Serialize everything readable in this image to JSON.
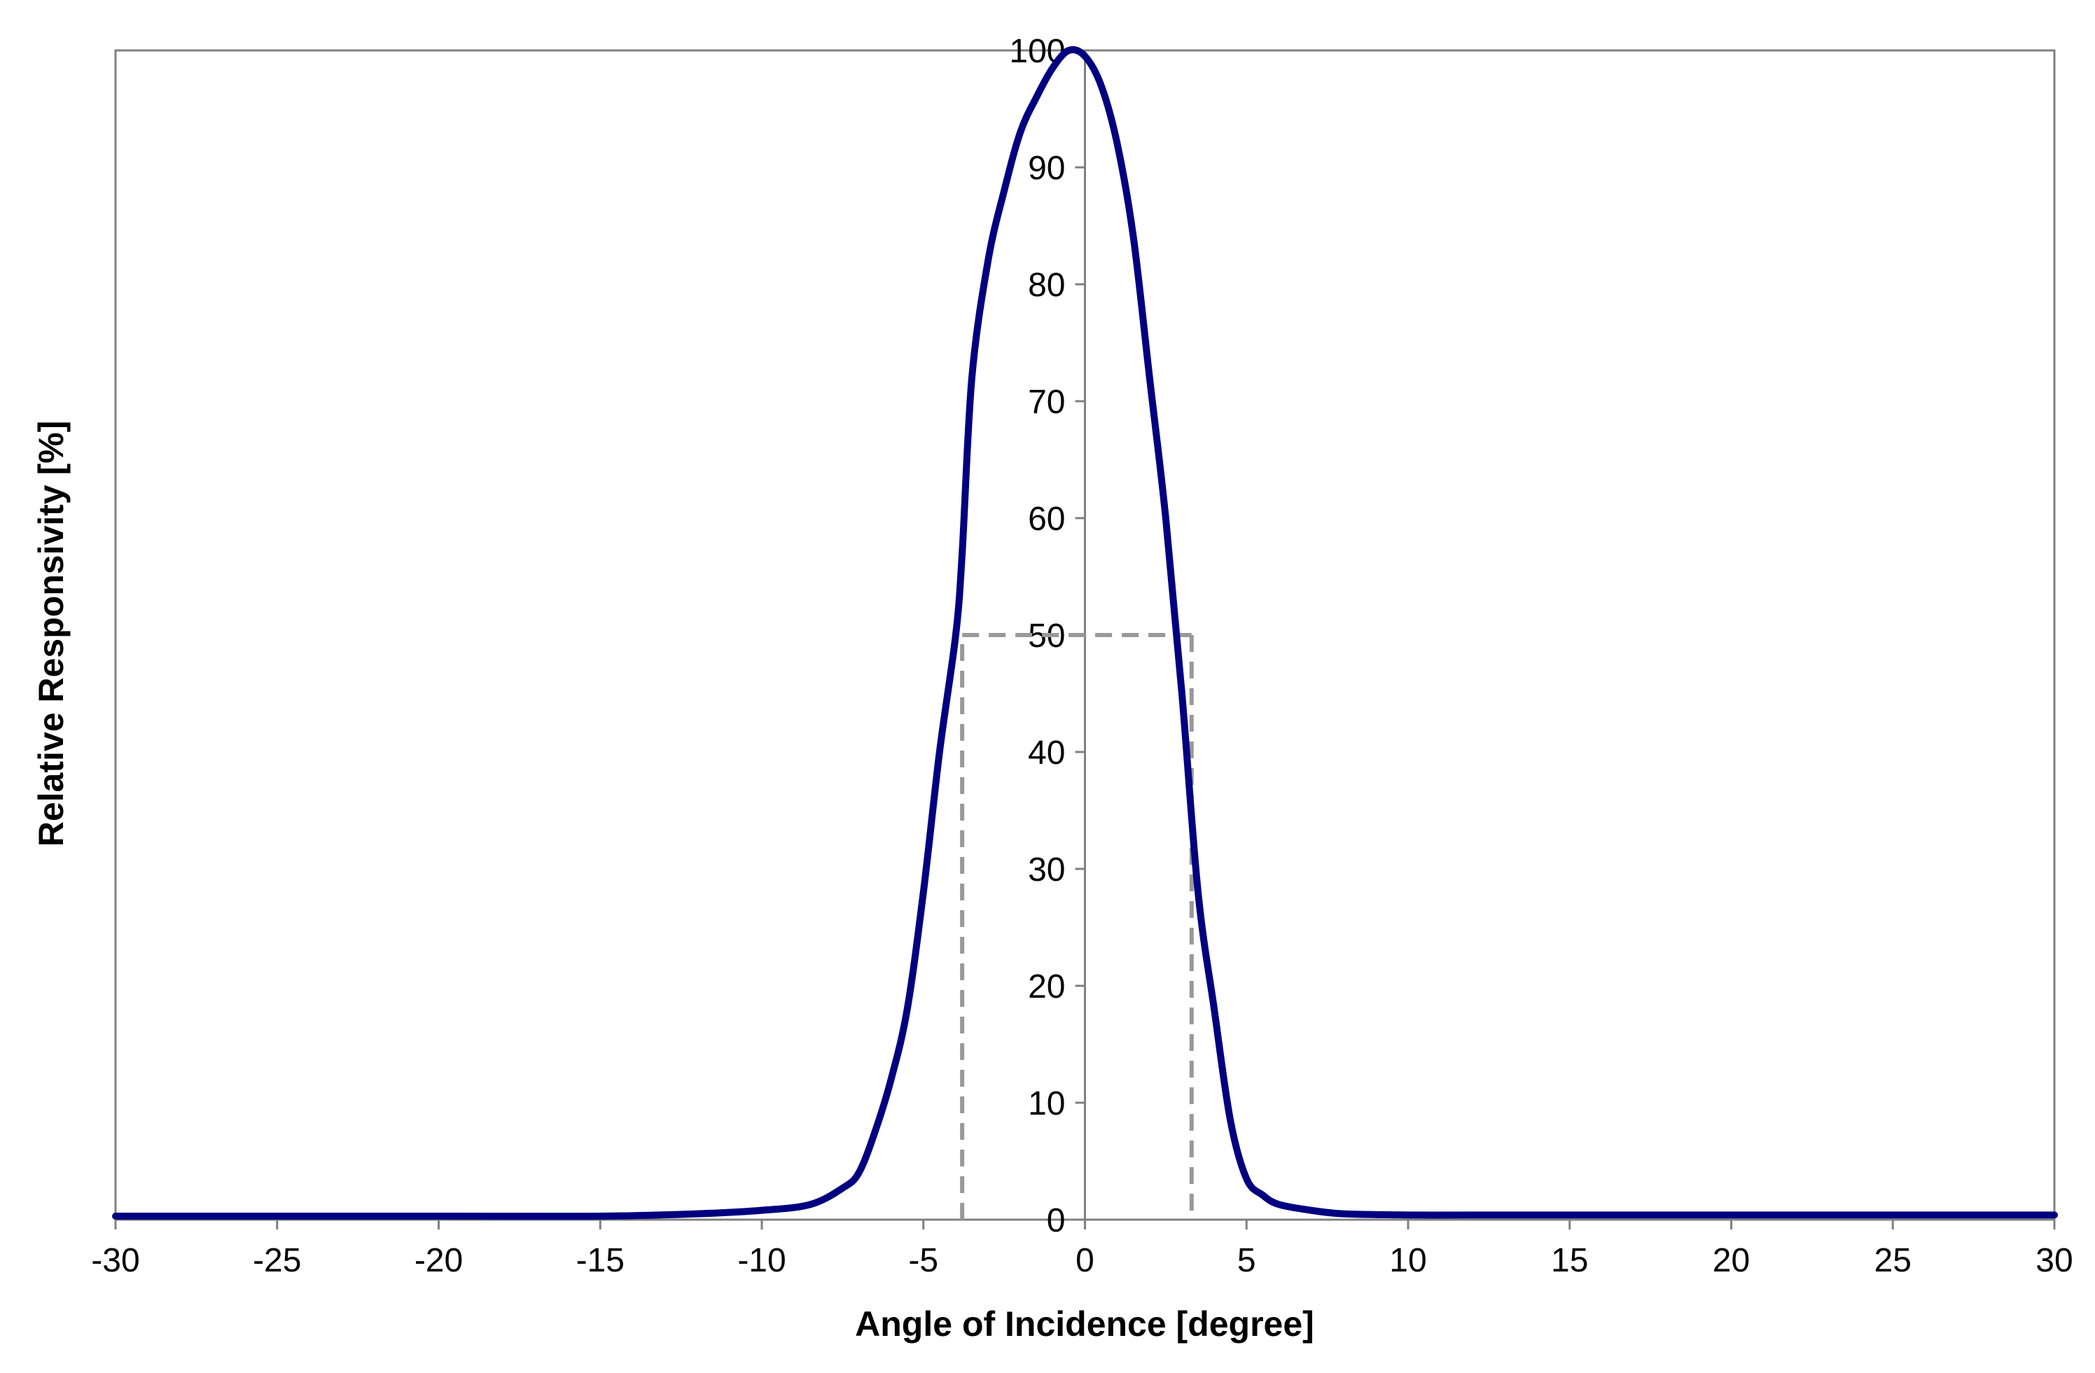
{
  "chart_data": {
    "type": "line",
    "title": "",
    "xlabel": "Angle of Incidence [degree]",
    "ylabel": "Relative Responsivity [%]",
    "xlim": [
      -30,
      30
    ],
    "ylim": [
      0,
      100
    ],
    "x_ticks": [
      -30,
      -25,
      -20,
      -15,
      -10,
      -5,
      0,
      5,
      10,
      15,
      20,
      25,
      30
    ],
    "y_ticks": [
      0,
      10,
      20,
      30,
      40,
      50,
      60,
      70,
      80,
      90,
      100
    ],
    "x_tick_labels": [
      "-30",
      "-25",
      "-20",
      "-15",
      "-10",
      "-5",
      "0",
      "5",
      "10",
      "15",
      "20",
      "25",
      "30"
    ],
    "y_tick_labels": [
      "0",
      "10",
      "20",
      "30",
      "40",
      "50",
      "60",
      "70",
      "80",
      "90",
      "100"
    ],
    "y_axis_position": "x = 0",
    "grid": false,
    "legend": "none",
    "series": [
      {
        "color": "#000080",
        "x": [
          -30,
          -20,
          -15,
          -12,
          -10,
          -8.5,
          -7.5,
          -7,
          -6.5,
          -6,
          -5.5,
          -5,
          -4.5,
          -4,
          -3.8,
          -3.5,
          -3,
          -2.5,
          -2,
          -1.5,
          -1,
          -0.5,
          0,
          0.5,
          1,
          1.5,
          2,
          2.5,
          3,
          3.5,
          4,
          4.5,
          5,
          5.5,
          6,
          7,
          8,
          10,
          12,
          15,
          20,
          25,
          30
        ],
        "y": [
          0.3,
          0.3,
          0.3,
          0.5,
          0.8,
          1.3,
          2.7,
          4.0,
          7.5,
          12,
          18,
          28,
          40,
          50,
          57,
          72,
          82,
          88,
          93,
          96,
          98.5,
          100,
          99.5,
          97,
          92,
          84,
          72,
          60,
          45,
          28,
          18,
          8.5,
          3.5,
          2.1,
          1.3,
          0.8,
          0.5,
          0.4,
          0.4,
          0.4,
          0.4,
          0.4,
          0.4
        ]
      }
    ],
    "reference_lines": {
      "color": "#999999",
      "style": "dashed",
      "half_maximum": 50,
      "left_angle": -3.8,
      "right_angle": 3.3
    }
  }
}
